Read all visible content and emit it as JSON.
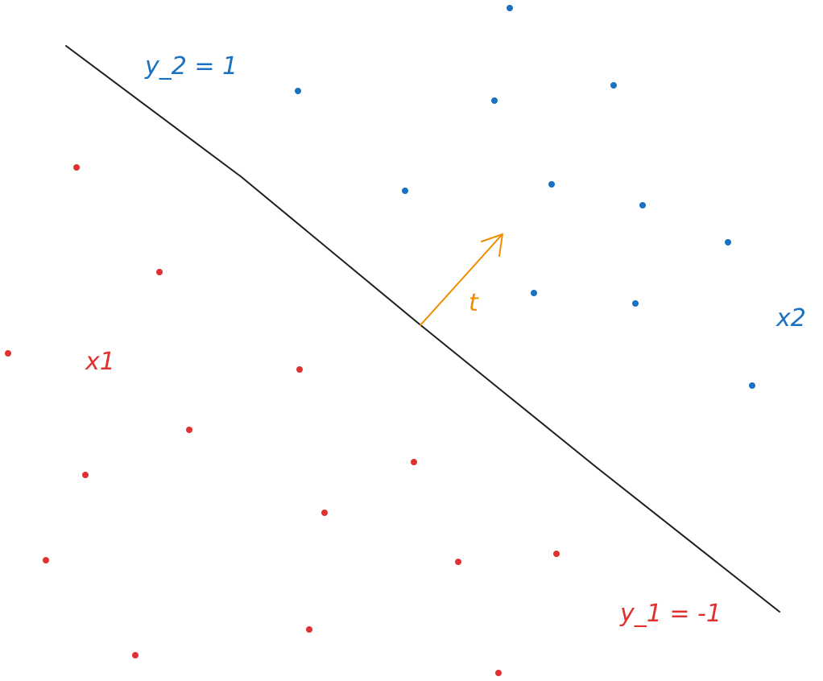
{
  "colors": {
    "class_1": "#e03131",
    "class_2": "#1971c2",
    "boundary": "#1e1e1e",
    "normal_vector": "#f08c00"
  },
  "labels": {
    "y2": "y_2 = 1",
    "x2": "x2",
    "x1": "x1",
    "y1": "y_1 = -1",
    "t": "t"
  }
}
